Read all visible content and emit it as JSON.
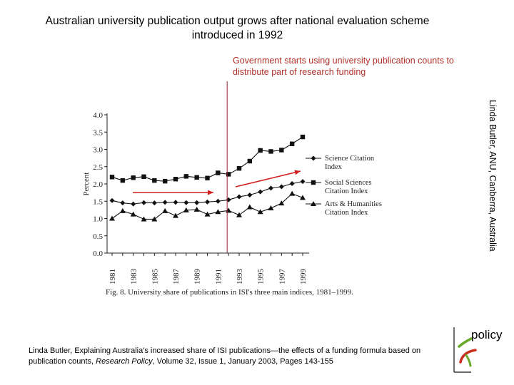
{
  "title": "Australian university publication output grows after national evaluation scheme introduced in 1992",
  "annotation": "Government starts using university publication counts to distribute part of research funding",
  "credit": "Linda Butler, ANU, Canberra, Australia",
  "citation_prefix": "Linda Butler, Explaining Australia's increased share of ISI publications—the effects of a funding formula based on publication counts, ",
  "citation_journal": "Research Policy",
  "citation_suffix": ", Volume 32, Issue 1, January 2003, Pages 143-155",
  "logo_text": "policy",
  "colors": {
    "annotation": "#b0302a",
    "vertical_line": "#8b2a2a",
    "arrows": "#d02020",
    "logo_green": "#6aaa2a",
    "logo_red": "#c83020"
  },
  "chart_data": {
    "type": "line",
    "caption": "Fig. 8.  University share of publications in ISI's three main indices, 1981–1999.",
    "ylabel": "Percent",
    "xlabel": "",
    "ylim": [
      0,
      4.0
    ],
    "yticks": [
      "0.0",
      "0.5",
      "1.0",
      "1.5",
      "2.0",
      "2.5",
      "3.0",
      "3.5",
      "4.0"
    ],
    "xticks": [
      "1981",
      "1983",
      "1985",
      "1987",
      "1989",
      "1991",
      "1993",
      "1995",
      "1997",
      "1999"
    ],
    "x": [
      1981,
      1982,
      1983,
      1984,
      1985,
      1986,
      1987,
      1988,
      1989,
      1990,
      1991,
      1992,
      1993,
      1994,
      1995,
      1996,
      1997,
      1998,
      1999
    ],
    "series": [
      {
        "name": "Science Citation Index",
        "marker": "diamond",
        "values": [
          1.52,
          1.45,
          1.42,
          1.46,
          1.45,
          1.47,
          1.47,
          1.46,
          1.46,
          1.48,
          1.5,
          1.54,
          1.63,
          1.68,
          1.77,
          1.88,
          1.92,
          2.01,
          2.07
        ]
      },
      {
        "name": "Social Sciences Citation Index",
        "marker": "square",
        "values": [
          2.2,
          2.1,
          2.18,
          2.21,
          2.1,
          2.08,
          2.14,
          2.22,
          2.19,
          2.17,
          2.32,
          2.28,
          2.45,
          2.66,
          2.97,
          2.94,
          2.98,
          3.16,
          3.36
        ]
      },
      {
        "name": "Arts & Humanities Citation Index",
        "marker": "triangle",
        "values": [
          1.0,
          1.22,
          1.12,
          0.98,
          0.98,
          1.22,
          1.08,
          1.24,
          1.26,
          1.12,
          1.19,
          1.23,
          1.1,
          1.33,
          1.19,
          1.3,
          1.44,
          1.72,
          1.6
        ]
      }
    ],
    "legend": [
      "Science Citation\nIndex",
      "Social Sciences\nCitation Index",
      "Arts & Humanities\nCitation Index"
    ],
    "legend_position": "right",
    "grid": false,
    "policy_change_year": 1992
  }
}
